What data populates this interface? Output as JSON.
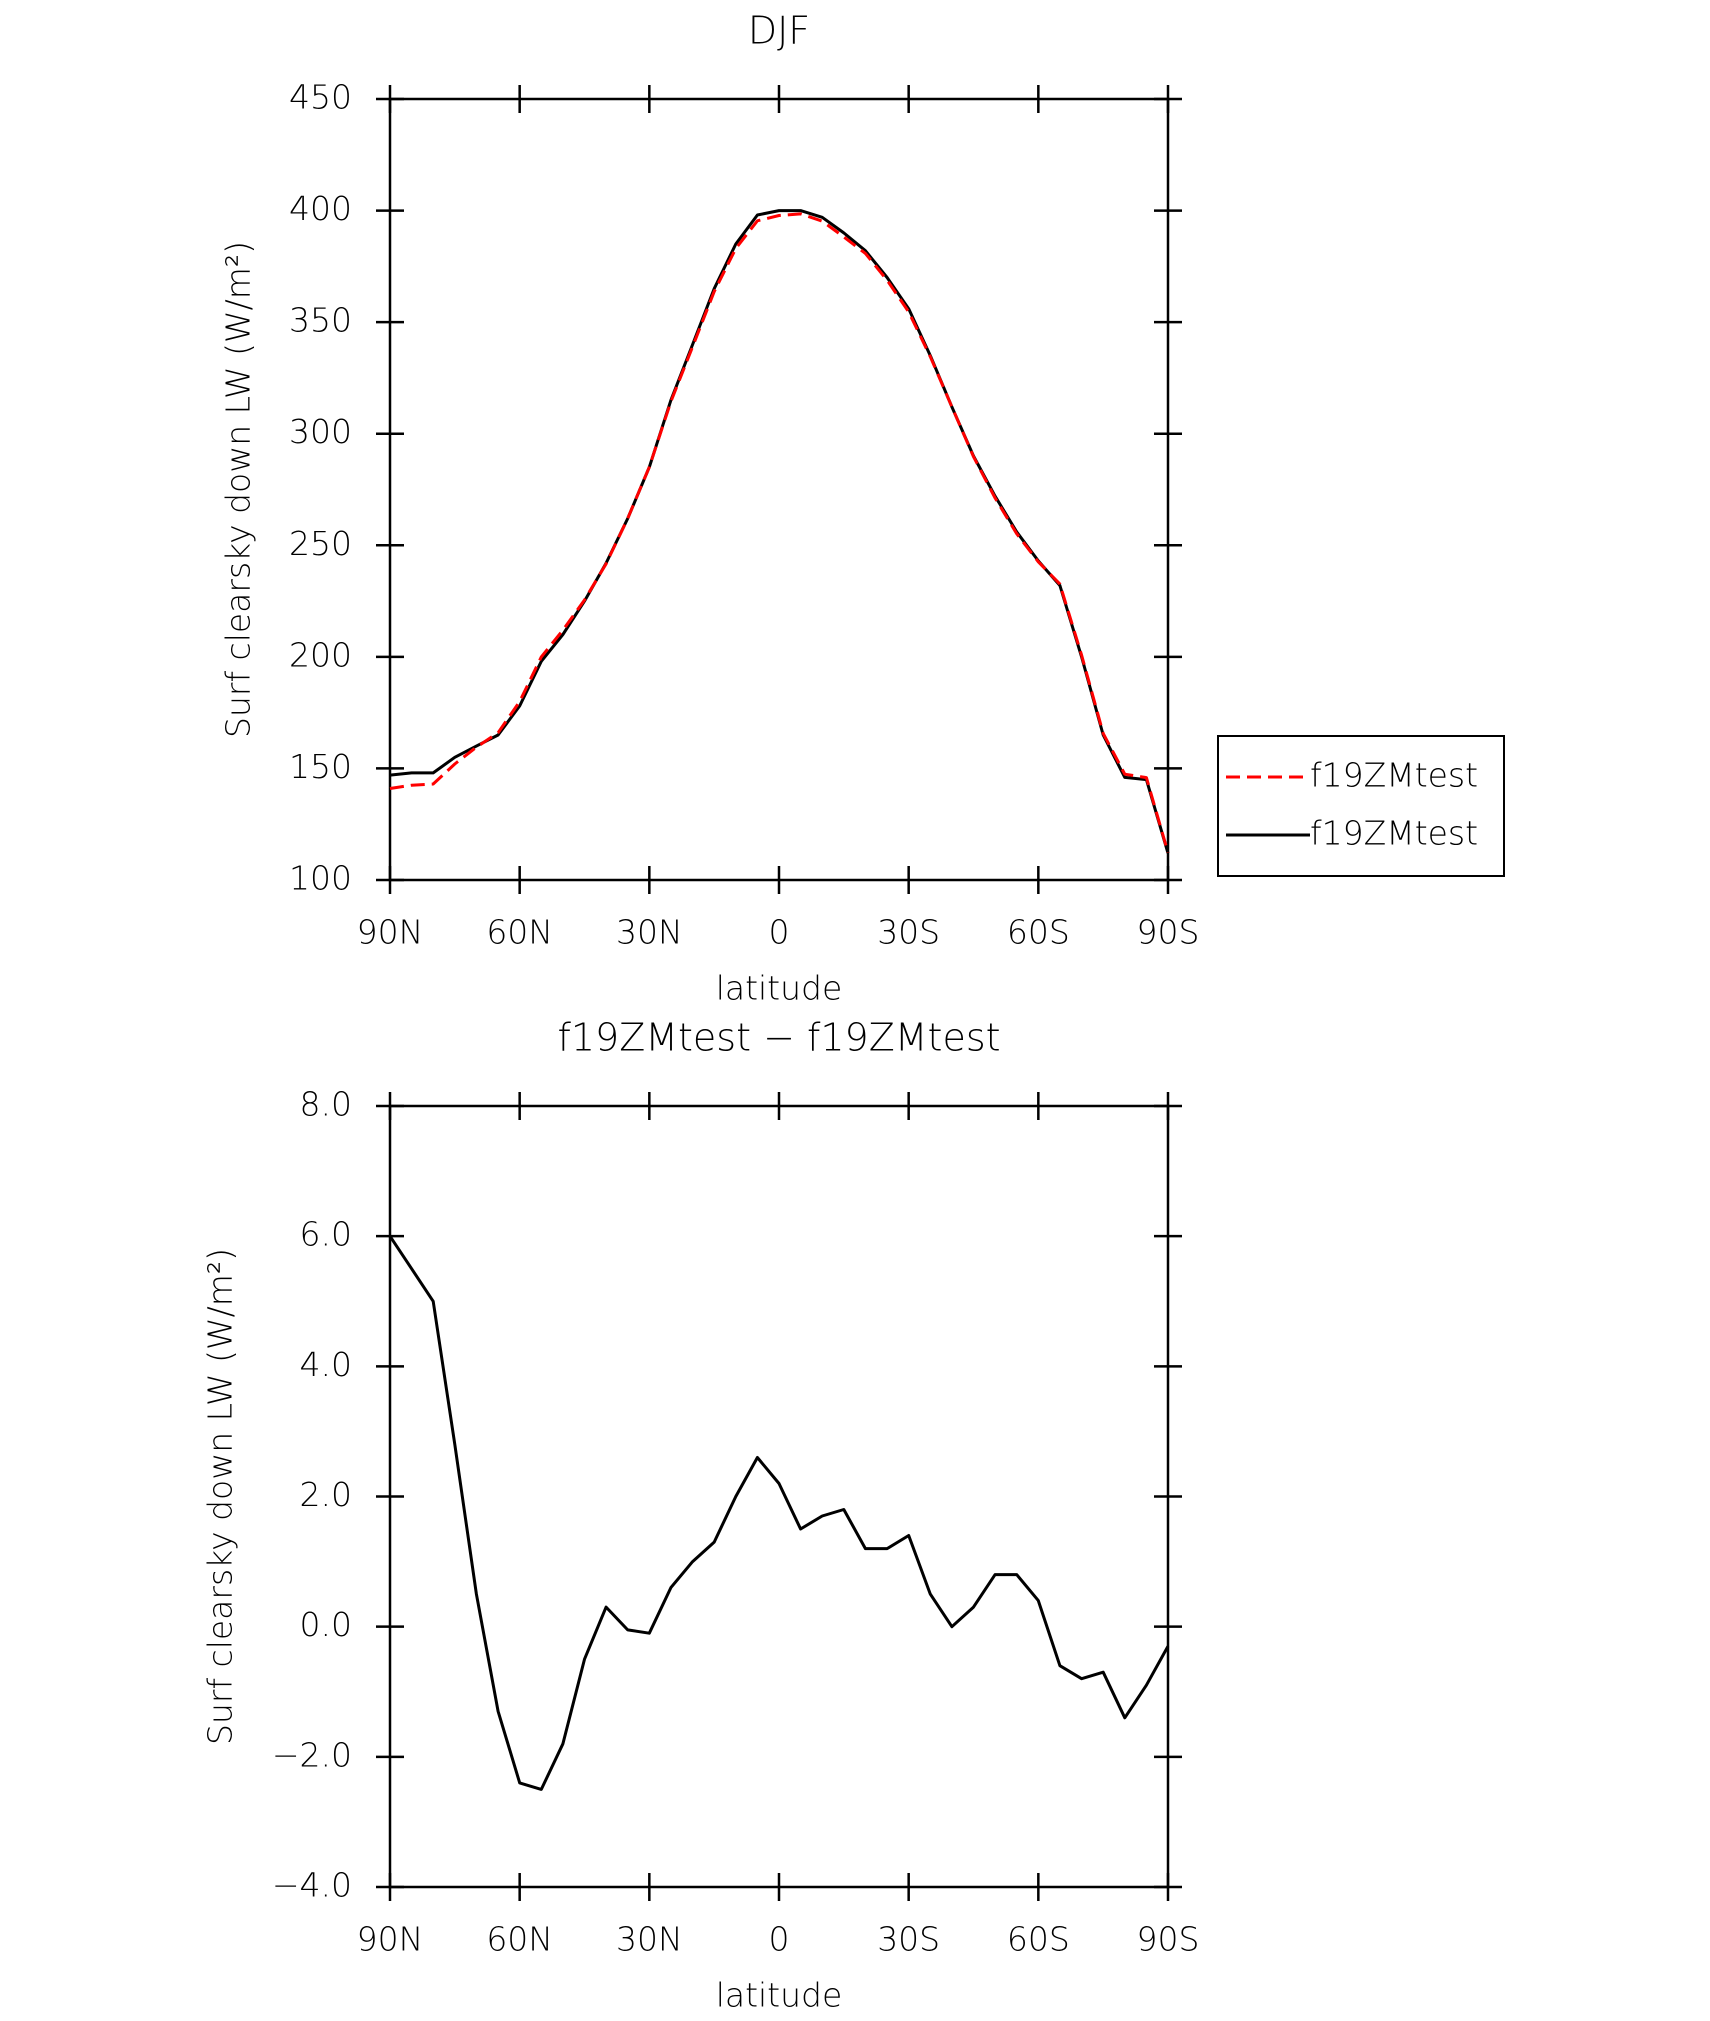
{
  "chart_data": [
    {
      "type": "line",
      "title": "DJF",
      "x_label": "latitude",
      "y_label": "Surf clearsky down LW (W/m²)",
      "x": [
        90,
        85,
        80,
        75,
        70,
        65,
        60,
        55,
        50,
        45,
        40,
        35,
        30,
        25,
        20,
        15,
        10,
        5,
        0,
        -5,
        -10,
        -15,
        -20,
        -25,
        -30,
        -35,
        -40,
        -45,
        -50,
        -55,
        -60,
        -65,
        -70,
        -75,
        -80,
        -85,
        -90
      ],
      "xlim": [
        90,
        -90
      ],
      "xticks": [
        {
          "value": 90,
          "label": "90N"
        },
        {
          "value": 60,
          "label": "60N"
        },
        {
          "value": 30,
          "label": "30N"
        },
        0,
        {
          "value": -30,
          "label": "30S"
        },
        {
          "value": -60,
          "label": "60S"
        },
        {
          "value": -90,
          "label": "90S"
        }
      ],
      "ylim": [
        100,
        450
      ],
      "yticks": [
        100,
        150,
        200,
        250,
        300,
        350,
        400,
        450
      ],
      "legend": "right",
      "series": [
        {
          "name": "f19ZMtest",
          "color": "#ff0000",
          "dash": true,
          "values": [
            141,
            142.5,
            143,
            152,
            159.5,
            166,
            180,
            200,
            212,
            225.5,
            241.7,
            262,
            285.1,
            314.4,
            339,
            363.7,
            383,
            395.4,
            397.8,
            398.5,
            395.3,
            388.2,
            380.8,
            368.8,
            354.6,
            334.5,
            312,
            289.7,
            271.2,
            255.2,
            242.6,
            232.6,
            200.8,
            165.7,
            147.4,
            145.9,
            112.3
          ]
        },
        {
          "name": "f19ZMtest",
          "color": "#000000",
          "dash": false,
          "values": [
            147,
            148,
            148,
            155,
            160,
            165,
            178,
            198,
            210,
            225,
            242,
            262,
            285,
            315,
            340,
            365,
            385,
            398,
            400,
            400,
            397,
            390,
            382,
            370,
            356,
            335,
            312,
            290,
            272,
            256,
            243,
            232,
            200,
            165,
            146,
            145,
            112
          ]
        }
      ]
    },
    {
      "type": "line",
      "title": "f19ZMtest − f19ZMtest",
      "x_label": "latitude",
      "y_label": "Surf clearsky down LW (W/m²)",
      "x": [
        90,
        85,
        80,
        75,
        70,
        65,
        60,
        55,
        50,
        45,
        40,
        35,
        30,
        25,
        20,
        15,
        10,
        5,
        0,
        -5,
        -10,
        -15,
        -20,
        -25,
        -30,
        -35,
        -40,
        -45,
        -50,
        -55,
        -60,
        -65,
        -70,
        -75,
        -80,
        -85,
        -90
      ],
      "xlim": [
        90,
        -90
      ],
      "xticks": [
        {
          "value": 90,
          "label": "90N"
        },
        {
          "value": 60,
          "label": "60N"
        },
        {
          "value": 30,
          "label": "30N"
        },
        0,
        {
          "value": -30,
          "label": "30S"
        },
        {
          "value": -60,
          "label": "60S"
        },
        {
          "value": -90,
          "label": "90S"
        }
      ],
      "ylim": [
        -4,
        8
      ],
      "yticks": [
        {
          "value": -4,
          "label": "−4.0"
        },
        {
          "value": -2,
          "label": "−2.0"
        },
        {
          "value": 0,
          "label": "0.0"
        },
        {
          "value": 2,
          "label": "2.0"
        },
        {
          "value": 4,
          "label": "4.0"
        },
        {
          "value": 6,
          "label": "6.0"
        },
        {
          "value": 8,
          "label": "8.0"
        }
      ],
      "series": [
        {
          "color": "#000000",
          "values": [
            6.0,
            5.5,
            5.0,
            2.8,
            0.5,
            -1.3,
            -2.4,
            -2.5,
            -1.8,
            -0.5,
            0.3,
            -0.05,
            -0.1,
            0.6,
            1.0,
            1.3,
            2.0,
            2.6,
            2.2,
            1.5,
            1.7,
            1.8,
            1.2,
            1.2,
            1.4,
            0.5,
            0.0,
            0.3,
            0.8,
            0.8,
            0.4,
            -0.6,
            -0.8,
            -0.7,
            -1.4,
            -0.9,
            -0.3
          ]
        }
      ]
    }
  ]
}
